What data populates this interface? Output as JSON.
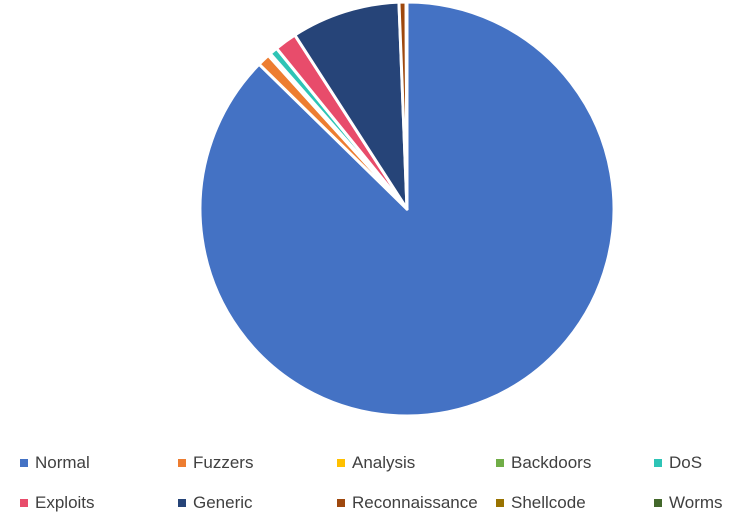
{
  "chart_data": {
    "type": "pie",
    "title": "",
    "categories": [
      "Normal",
      "Fuzzers",
      "Analysis",
      "Backdoors",
      "DoS",
      "Exploits",
      "Generic",
      "Reconnaissance",
      "Shellcode",
      "Worms"
    ],
    "values": [
      87.4,
      0.98,
      0.11,
      0.09,
      0.64,
      1.74,
      8.5,
      0.55,
      0.06,
      0.01
    ],
    "unit": "%",
    "colors": [
      "#4472C4",
      "#ED7D31",
      "#FFC000",
      "#70AD47",
      "#2EC4B6",
      "#E84C6B",
      "#264478",
      "#9E480E",
      "#997300",
      "#43682B"
    ],
    "slice_border_color": "#ffffff",
    "start": "12 o'clock",
    "direction": "clockwise",
    "legend_position": "bottom"
  }
}
